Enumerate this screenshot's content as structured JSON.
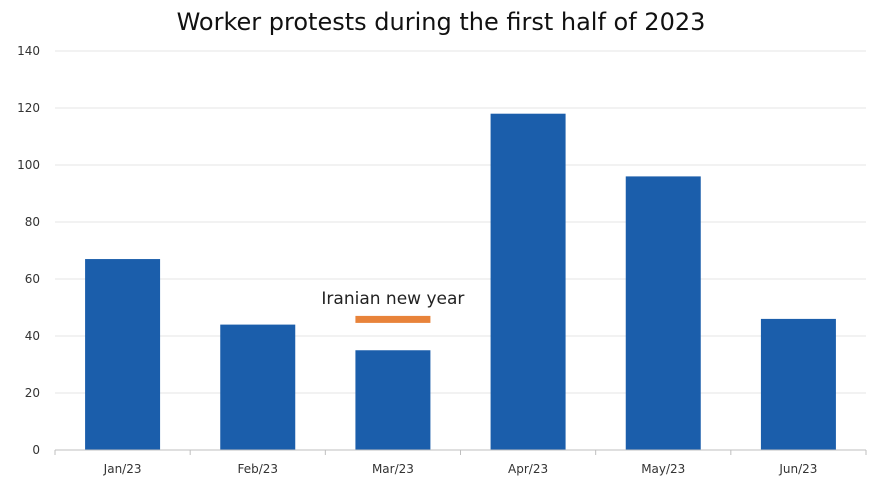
{
  "chart_data": {
    "type": "bar",
    "title": "Worker protests during the first half of 2023",
    "categories": [
      "Jan/23",
      "Feb/23",
      "Mar/23",
      "Apr/23",
      "May/23",
      "Jun/23"
    ],
    "values": [
      67,
      44,
      35,
      118,
      96,
      46
    ],
    "ylim": [
      0,
      140
    ],
    "yticks": [
      0,
      20,
      40,
      60,
      80,
      100,
      120,
      140
    ],
    "grid": true,
    "bar_color": "#1b5eab",
    "annotation": {
      "text": "Iranian new year",
      "category": "Mar/23",
      "marker_value": 46,
      "color": "#e8833a"
    }
  }
}
